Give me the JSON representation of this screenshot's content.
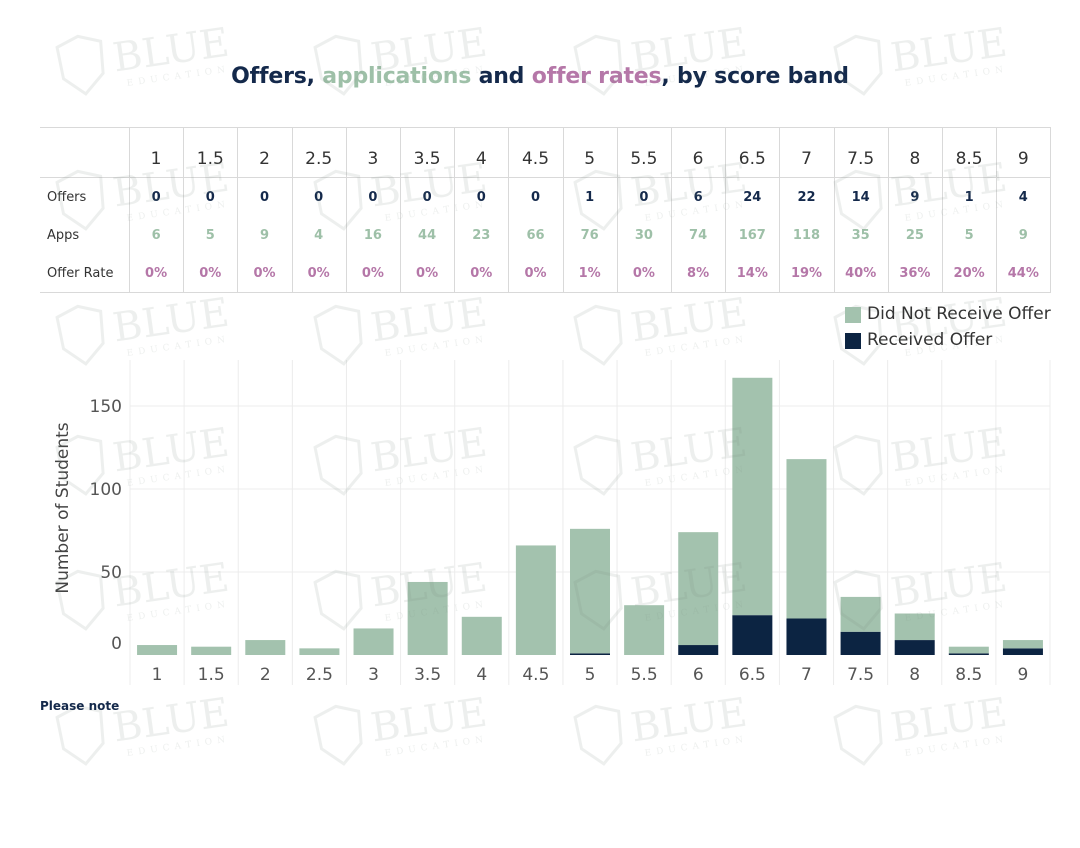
{
  "title": {
    "part1": "Offers, ",
    "part2": "applications",
    "part3": " and ",
    "part4": "offer rates",
    "part5": ", by score band"
  },
  "table": {
    "bands": [
      "1",
      "1.5",
      "2",
      "2.5",
      "3",
      "3.5",
      "4",
      "4.5",
      "5",
      "5.5",
      "6",
      "6.5",
      "7",
      "7.5",
      "8",
      "8.5",
      "9"
    ],
    "row_labels": {
      "offers": "Offers",
      "apps": "Apps",
      "rate": "Offer Rate"
    },
    "offers": [
      "0",
      "0",
      "0",
      "0",
      "0",
      "0",
      "0",
      "0",
      "1",
      "0",
      "6",
      "24",
      "22",
      "14",
      "9",
      "1",
      "4"
    ],
    "apps": [
      "6",
      "5",
      "9",
      "4",
      "16",
      "44",
      "23",
      "66",
      "76",
      "30",
      "74",
      "167",
      "118",
      "35",
      "25",
      "5",
      "9"
    ],
    "rates": [
      "0%",
      "0%",
      "0%",
      "0%",
      "0%",
      "0%",
      "0%",
      "0%",
      "1%",
      "0%",
      "8%",
      "14%",
      "19%",
      "40%",
      "36%",
      "20%",
      "44%"
    ]
  },
  "legend": {
    "not_offer": "Did Not Receive Offer",
    "offer": "Received Offer"
  },
  "note": "Please note",
  "watermark": {
    "word": "BLUE",
    "sub": "EDUCATION"
  },
  "colors": {
    "navy": "#14294b",
    "green": "#a3c2ae",
    "pink": "#b577a8",
    "offer_bar": "#0c2442"
  },
  "chart_data": {
    "type": "bar",
    "stacked": true,
    "categories": [
      "1",
      "1.5",
      "2",
      "2.5",
      "3",
      "3.5",
      "4",
      "4.5",
      "5",
      "5.5",
      "6",
      "6.5",
      "7",
      "7.5",
      "8",
      "8.5",
      "9"
    ],
    "series": [
      {
        "name": "Received Offer",
        "values": [
          0,
          0,
          0,
          0,
          0,
          0,
          0,
          0,
          1,
          0,
          6,
          24,
          22,
          14,
          9,
          1,
          4
        ]
      },
      {
        "name": "Did Not Receive Offer",
        "values": [
          6,
          5,
          9,
          4,
          16,
          44,
          23,
          66,
          75,
          30,
          68,
          143,
          96,
          21,
          16,
          4,
          5
        ]
      }
    ],
    "ylabel": "Number of Students",
    "xlabel": "",
    "yticks": [
      0,
      50,
      100,
      150
    ],
    "ylim": [
      0,
      170
    ],
    "grid": true,
    "legend_position": "top-right"
  }
}
